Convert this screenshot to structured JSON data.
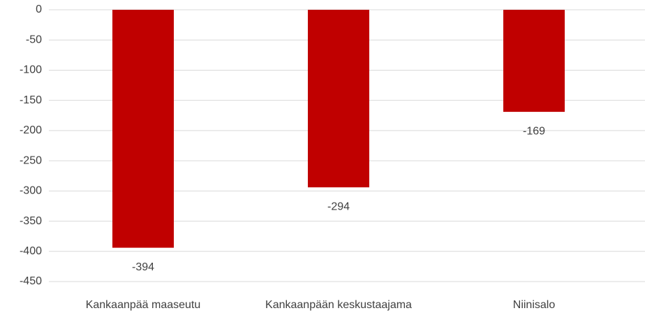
{
  "chart_data": {
    "type": "bar",
    "categories": [
      "Kankaanpää maaseutu",
      "Kankaanpään keskustaajama",
      "Niinisalo"
    ],
    "values": [
      -394,
      -294,
      -169
    ],
    "color": "#c00000",
    "ylim": [
      -450,
      0
    ],
    "yticks": [
      0,
      -50,
      -100,
      -150,
      -200,
      -250,
      -300,
      -350,
      -400,
      -450
    ],
    "grid": true
  }
}
